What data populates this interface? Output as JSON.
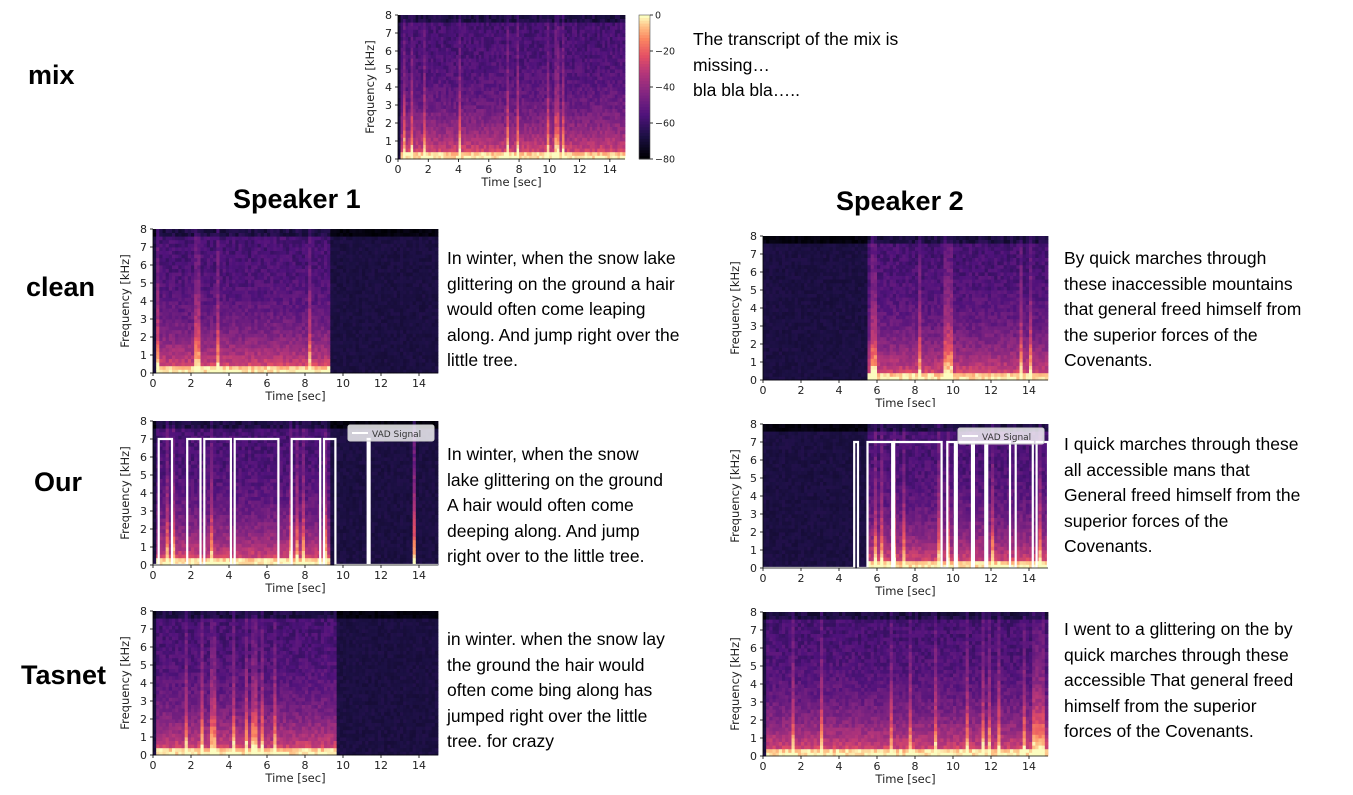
{
  "row_labels": {
    "mix": "mix",
    "clean": "clean",
    "ours": "Our",
    "tasnet": "Tasnet"
  },
  "speakers": {
    "s1": "Speaker 1",
    "s2": "Speaker 2"
  },
  "transcripts": {
    "mix": "The transcript of the mix is\nmissing…\nbla bla bla…..",
    "clean_s1": "In winter, when the snow lake\nglittering on the ground a hair\nwould often come leaping\nalong. And jump right over the\nlittle tree.",
    "clean_s2": "By quick marches through\nthese inaccessible mountains\nthat general freed himself from\nthe superior forces of the\nCovenants.",
    "ours_s1": "In winter, when the snow\nlake glittering on the ground\nA hair would often come\ndeeping along. And jump\nright over to the little tree.",
    "ours_s2": "I quick marches through these\nall accessible mans that\nGeneral freed himself from the\nsuperior forces of the\nCovenants.",
    "tasnet_s1": "in winter. when the snow lay\nthe ground the hair would\noften come bing along has\njumped right over the little\ntree. for crazy",
    "tasnet_s2": "I went to a glittering on the by\nquick marches through these\naccessible That general freed\nhimself from the superior\nforces of the Covenants."
  },
  "chart_data": [
    {
      "id": "mix",
      "type": "heatmap",
      "xlabel": "Time [sec]",
      "ylabel": "Frequency [kHz]",
      "xlim": [
        0,
        15
      ],
      "ylim": [
        0,
        8
      ],
      "xticks": [
        0,
        2,
        4,
        6,
        8,
        10,
        12,
        14
      ],
      "yticks": [
        0,
        1,
        2,
        3,
        4,
        5,
        6,
        7,
        8
      ],
      "colorbar": {
        "ticks": [
          "0",
          "−20",
          "−40",
          "−60",
          "−80"
        ],
        "range": [
          -80,
          0
        ]
      },
      "active_segments": [
        [
          0.2,
          15
        ]
      ]
    },
    {
      "id": "clean_s1",
      "type": "heatmap",
      "xlabel": "Time [sec]",
      "ylabel": "Frequency [kHz]",
      "xlim": [
        0,
        15
      ],
      "ylim": [
        0,
        8
      ],
      "xticks": [
        0,
        2,
        4,
        6,
        8,
        10,
        12,
        14
      ],
      "yticks": [
        0,
        1,
        2,
        3,
        4,
        5,
        6,
        7,
        8
      ],
      "active_segments": [
        [
          0.2,
          9.4
        ]
      ]
    },
    {
      "id": "clean_s2",
      "type": "heatmap",
      "xlabel": "Time [sec]",
      "ylabel": "Frequency [kHz]",
      "xlim": [
        0,
        15
      ],
      "ylim": [
        0,
        8
      ],
      "xticks": [
        0,
        2,
        4,
        6,
        8,
        10,
        12,
        14
      ],
      "yticks": [
        0,
        1,
        2,
        3,
        4,
        5,
        6,
        7,
        8
      ],
      "active_segments": [
        [
          5.5,
          15
        ]
      ]
    },
    {
      "id": "ours_s1",
      "type": "heatmap",
      "xlabel": "Time [sec]",
      "ylabel": "Frequency [kHz]",
      "xlim": [
        0,
        15
      ],
      "ylim": [
        0,
        8
      ],
      "xticks": [
        0,
        2,
        4,
        6,
        8,
        10,
        12,
        14
      ],
      "yticks": [
        0,
        1,
        2,
        3,
        4,
        5,
        6,
        7,
        8
      ],
      "legend": "VAD Signal",
      "active_segments": [
        [
          0.2,
          9.4
        ],
        [
          13.6,
          13.9
        ]
      ],
      "vad_segments": [
        [
          0.3,
          1.0
        ],
        [
          1.8,
          2.5
        ],
        [
          2.7,
          4.1
        ],
        [
          4.3,
          6.6
        ],
        [
          7.3,
          8.8
        ],
        [
          9.0,
          9.6
        ],
        [
          11.3,
          11.4
        ]
      ]
    },
    {
      "id": "ours_s2",
      "type": "heatmap",
      "xlabel": "Time [sec]",
      "ylabel": "Frequency [kHz]",
      "xlim": [
        0,
        15
      ],
      "ylim": [
        0,
        8
      ],
      "xticks": [
        0,
        2,
        4,
        6,
        8,
        10,
        12,
        14
      ],
      "yticks": [
        0,
        1,
        2,
        3,
        4,
        5,
        6,
        7,
        8
      ],
      "legend": "VAD Signal",
      "active_segments": [
        [
          5.5,
          15
        ]
      ],
      "vad_segments": [
        [
          4.8,
          5.0
        ],
        [
          5.5,
          6.8
        ],
        [
          6.9,
          9.4
        ],
        [
          9.7,
          10.1
        ],
        [
          10.2,
          11.0
        ],
        [
          11.1,
          11.7
        ],
        [
          11.8,
          13.0
        ],
        [
          13.3,
          14.2
        ],
        [
          14.4,
          15.0
        ]
      ]
    },
    {
      "id": "tasnet_s1",
      "type": "heatmap",
      "xlabel": "Time [sec]",
      "ylabel": "Frequency [kHz]",
      "xlim": [
        0,
        15
      ],
      "ylim": [
        0,
        8
      ],
      "xticks": [
        0,
        2,
        4,
        6,
        8,
        10,
        12,
        14
      ],
      "yticks": [
        0,
        1,
        2,
        3,
        4,
        5,
        6,
        7,
        8
      ],
      "active_segments": [
        [
          0.2,
          9.6
        ]
      ]
    },
    {
      "id": "tasnet_s2",
      "type": "heatmap",
      "xlabel": "Time [sec]",
      "ylabel": "Frequency [kHz]",
      "xlim": [
        0,
        15
      ],
      "ylim": [
        0,
        8
      ],
      "xticks": [
        0,
        2,
        4,
        6,
        8,
        10,
        12,
        14
      ],
      "yticks": [
        0,
        1,
        2,
        3,
        4,
        5,
        6,
        7,
        8
      ],
      "active_segments": [
        [
          0.2,
          15
        ]
      ]
    }
  ]
}
